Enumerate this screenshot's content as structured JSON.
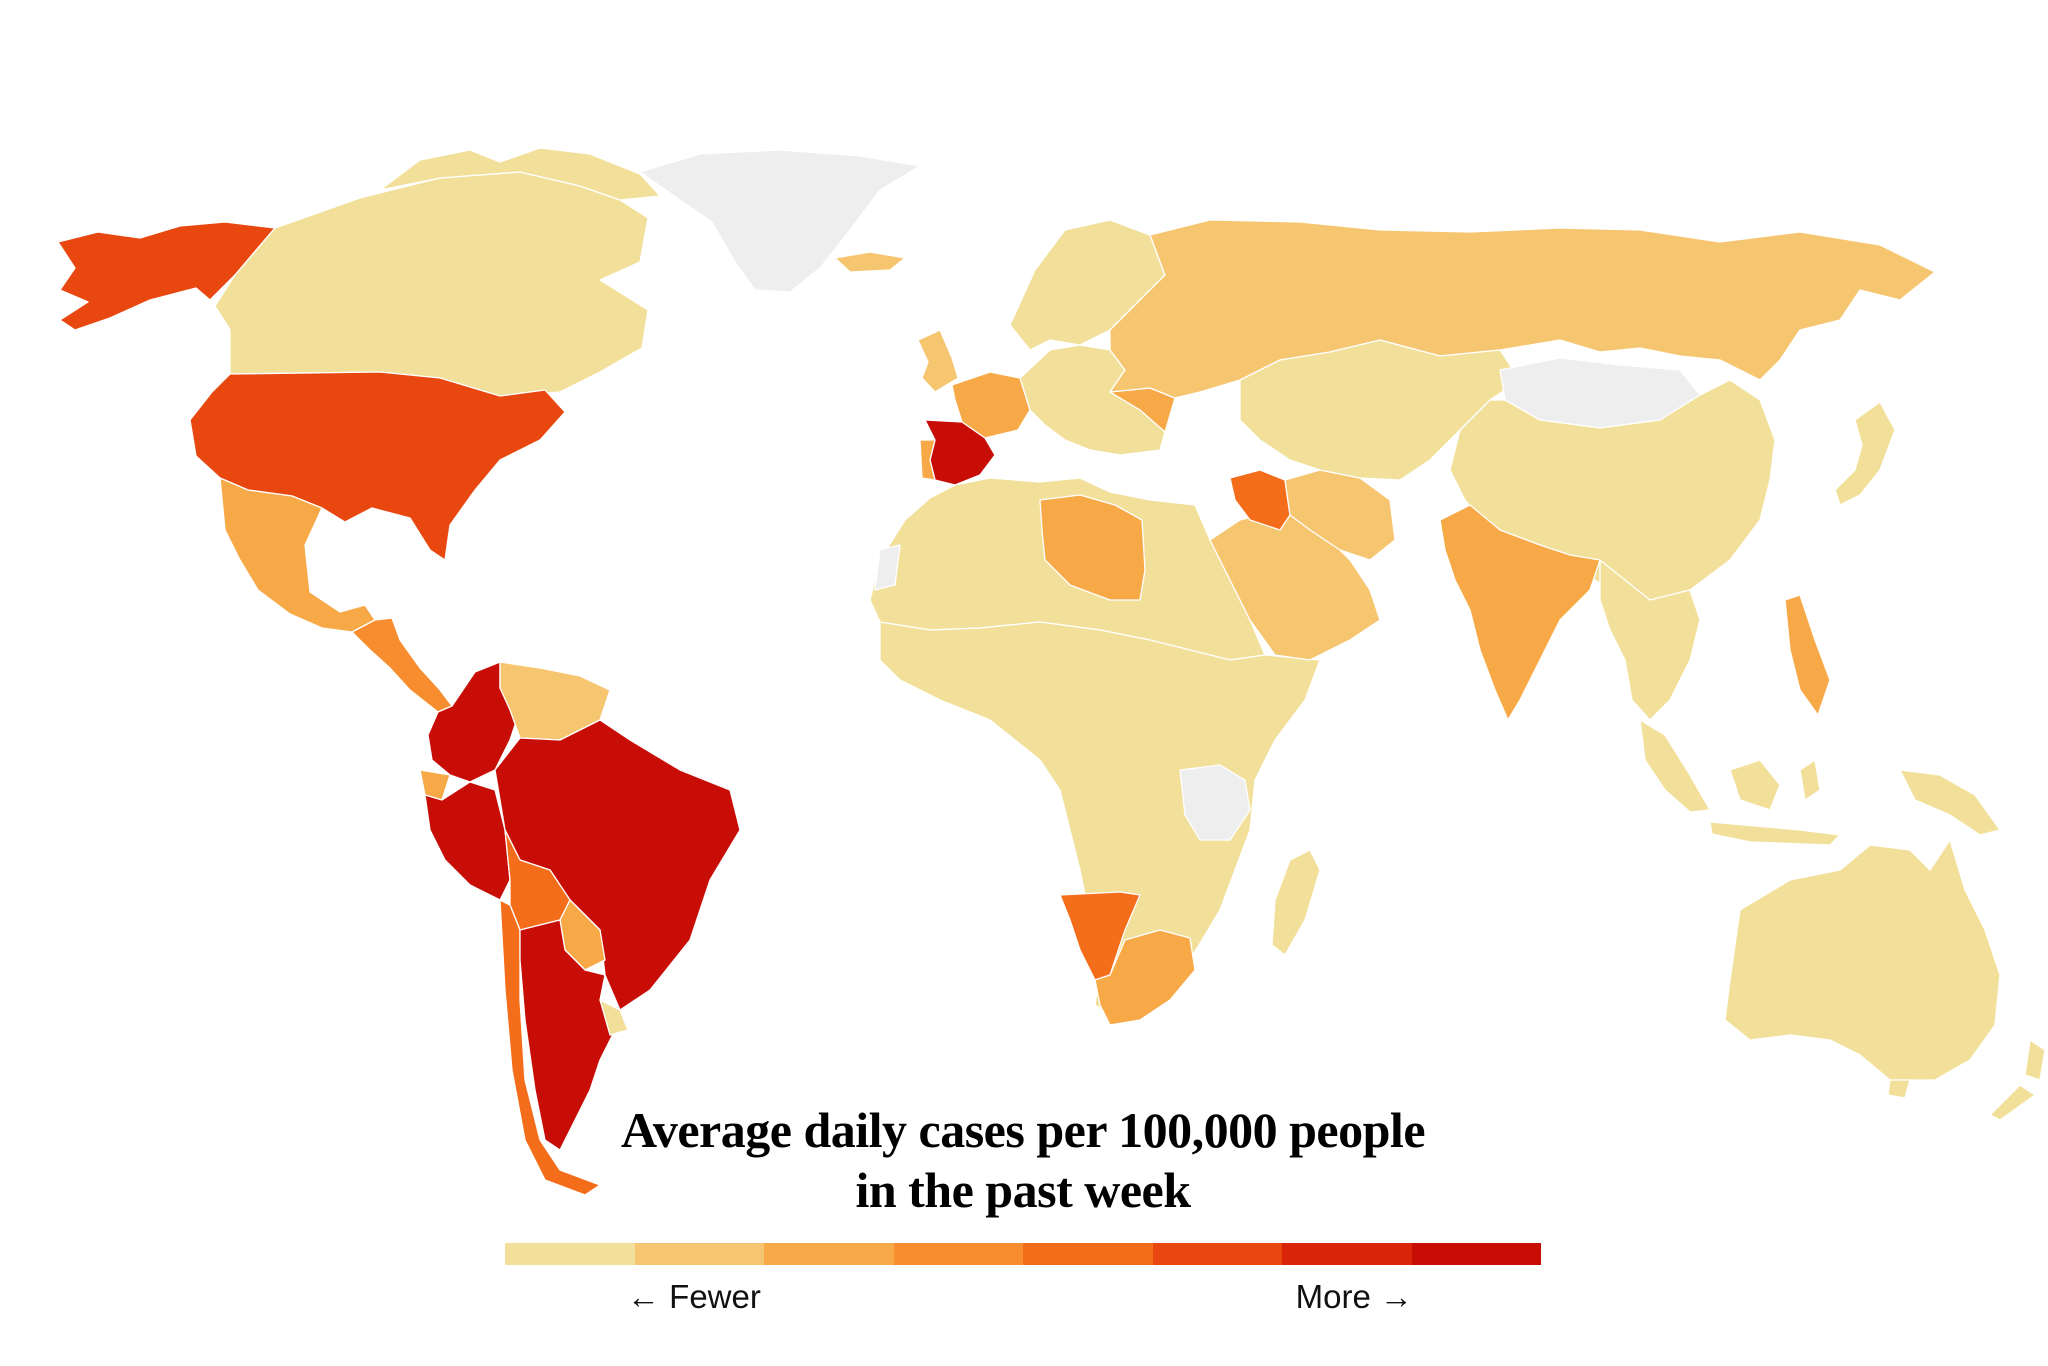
{
  "legend": {
    "title_line1": "Average daily cases per 100,000 people",
    "title_line2": "in the past week",
    "low_label": "← Fewer",
    "high_label": "More →",
    "scale": [
      "#f2e09a",
      "#f6c56f",
      "#f8a947",
      "#f78d2e",
      "#f46d1b",
      "#e84810",
      "#d9260a",
      "#c80d07"
    ]
  },
  "colors": {
    "no_data": "#eeeeee",
    "level_1": "#f2e09a",
    "level_2": "#f6c56f",
    "level_3": "#f8a947",
    "level_4": "#f78d2e",
    "level_5": "#f46d1b",
    "level_6": "#e84810",
    "level_7": "#d9260a",
    "level_8": "#c80d07"
  },
  "regions": [
    {
      "name": "Alaska",
      "level": 6
    },
    {
      "name": "Canada",
      "level": 1
    },
    {
      "name": "Greenland",
      "level": 0
    },
    {
      "name": "United States",
      "level": 6
    },
    {
      "name": "Mexico",
      "level": 3
    },
    {
      "name": "Central America",
      "level": 4
    },
    {
      "name": "Colombia",
      "level": 8
    },
    {
      "name": "Venezuela",
      "level": 2
    },
    {
      "name": "Ecuador",
      "level": 3
    },
    {
      "name": "Peru",
      "level": 8
    },
    {
      "name": "Brazil",
      "level": 8
    },
    {
      "name": "Bolivia",
      "level": 5
    },
    {
      "name": "Paraguay",
      "level": 3
    },
    {
      "name": "Argentina",
      "level": 8
    },
    {
      "name": "Chile",
      "level": 5
    },
    {
      "name": "Uruguay",
      "level": 1
    },
    {
      "name": "Iceland",
      "level": 2
    },
    {
      "name": "United Kingdom",
      "level": 2
    },
    {
      "name": "Scandinavia",
      "level": 1
    },
    {
      "name": "France",
      "level": 3
    },
    {
      "name": "Spain",
      "level": 8
    },
    {
      "name": "Portugal",
      "level": 3
    },
    {
      "name": "Central Europe",
      "level": 1
    },
    {
      "name": "Romania",
      "level": 3
    },
    {
      "name": "Russia",
      "level": 2
    },
    {
      "name": "North Africa",
      "level": 1
    },
    {
      "name": "Libya",
      "level": 3
    },
    {
      "name": "West Sahara",
      "level": 0
    },
    {
      "name": "Sub-Saharan Africa",
      "level": 1
    },
    {
      "name": "Tanzania",
      "level": 0
    },
    {
      "name": "Namibia",
      "level": 5
    },
    {
      "name": "South Africa",
      "level": 3
    },
    {
      "name": "Madagascar",
      "level": 1
    },
    {
      "name": "Saudi Arabia",
      "level": 2
    },
    {
      "name": "Iraq",
      "level": 5
    },
    {
      "name": "Iran",
      "level": 2
    },
    {
      "name": "Central Asia",
      "level": 1
    },
    {
      "name": "Mongolia",
      "level": 0
    },
    {
      "name": "China",
      "level": 1
    },
    {
      "name": "India",
      "level": 3
    },
    {
      "name": "Southeast Asia",
      "level": 1
    },
    {
      "name": "Philippines",
      "level": 3
    },
    {
      "name": "Indonesia",
      "level": 1
    },
    {
      "name": "Papua New Guinea",
      "level": 1
    },
    {
      "name": "Japan",
      "level": 1
    },
    {
      "name": "Australia",
      "level": 1
    },
    {
      "name": "New Zealand",
      "level": 1
    }
  ]
}
